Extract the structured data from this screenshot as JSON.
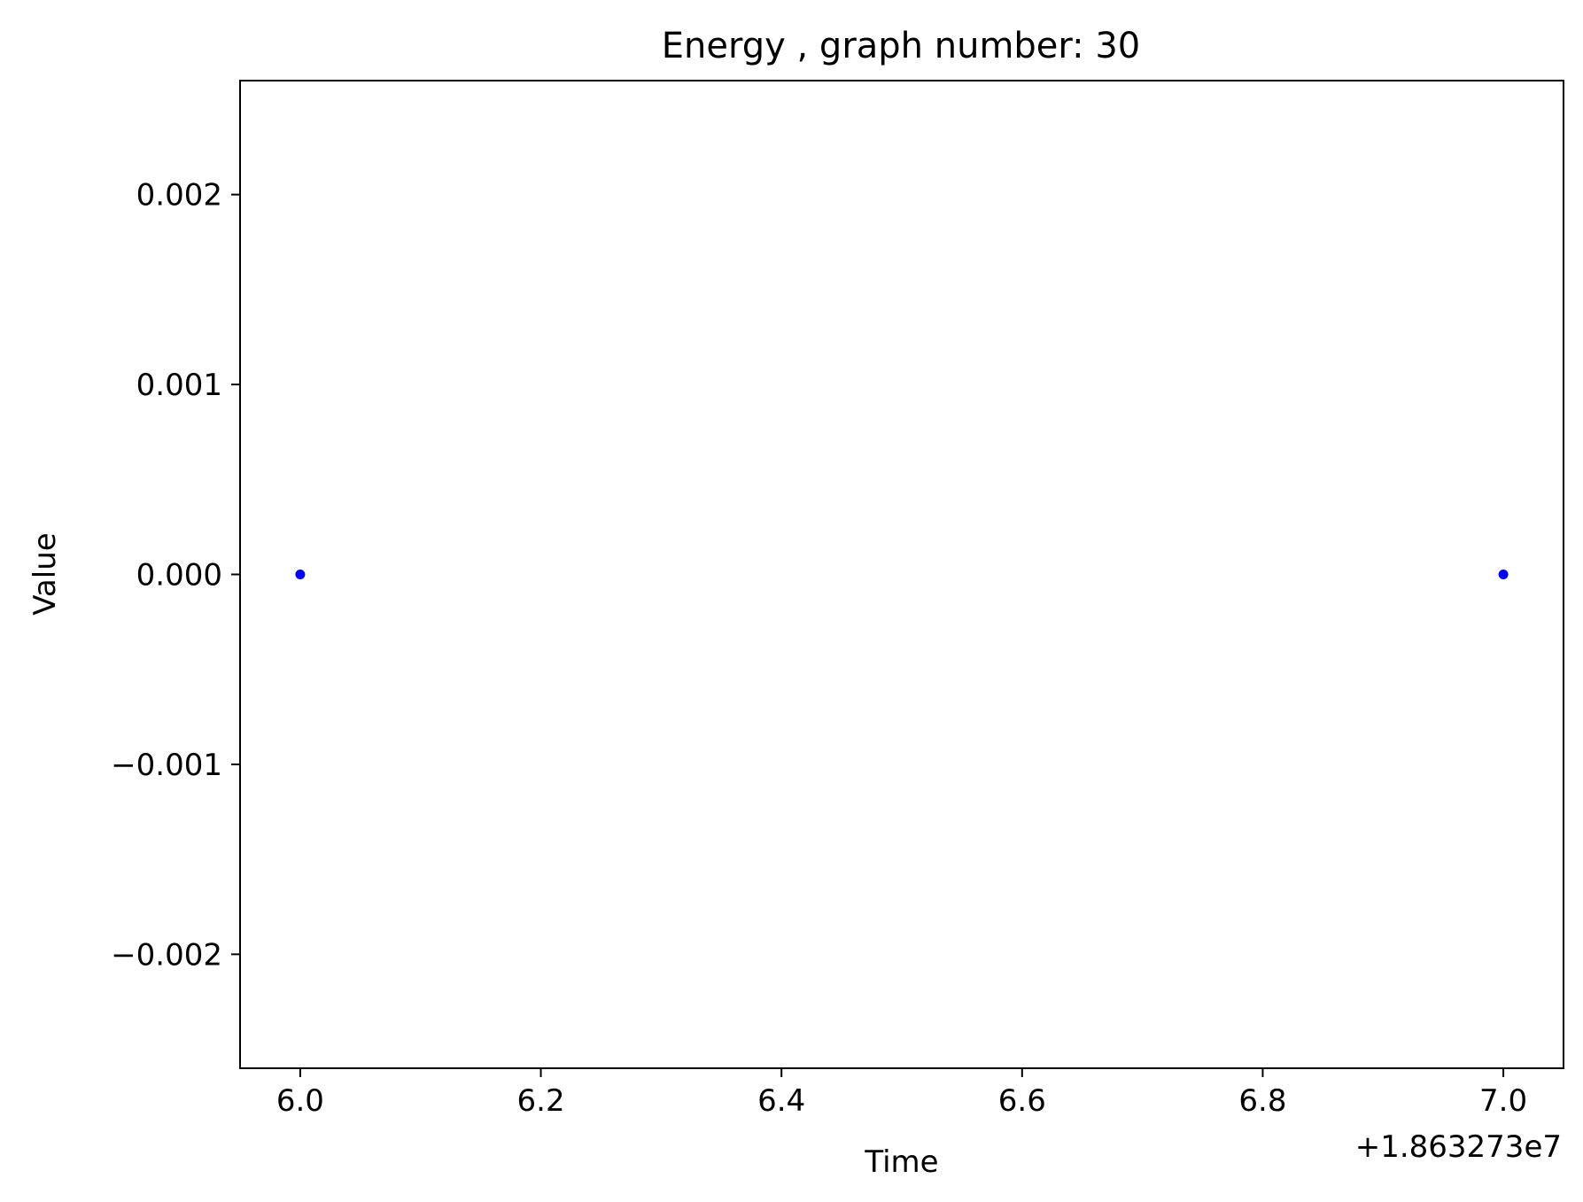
{
  "chart_data": {
    "type": "scatter",
    "title": "Energy , graph number: 30",
    "xlabel": "Time",
    "ylabel": "Value",
    "x_offset_label": "+1.863273e7",
    "xlim": [
      5.95,
      7.05
    ],
    "ylim": [
      -0.0026,
      0.0026
    ],
    "x_ticks": [
      6.0,
      6.2,
      6.4,
      6.6,
      6.8,
      7.0
    ],
    "x_tick_labels": [
      "6.0",
      "6.2",
      "6.4",
      "6.6",
      "6.8",
      "7.0"
    ],
    "y_ticks": [
      0.002,
      0.001,
      0.0,
      -0.001,
      -0.002
    ],
    "y_tick_labels": [
      "0.002",
      "0.001",
      "0.000",
      "−0.001",
      "−0.002"
    ],
    "grid": false,
    "marker_color": "#0000ff",
    "points": [
      {
        "x": 6.0,
        "y": 0.0
      },
      {
        "x": 7.0,
        "y": 0.0
      }
    ]
  }
}
